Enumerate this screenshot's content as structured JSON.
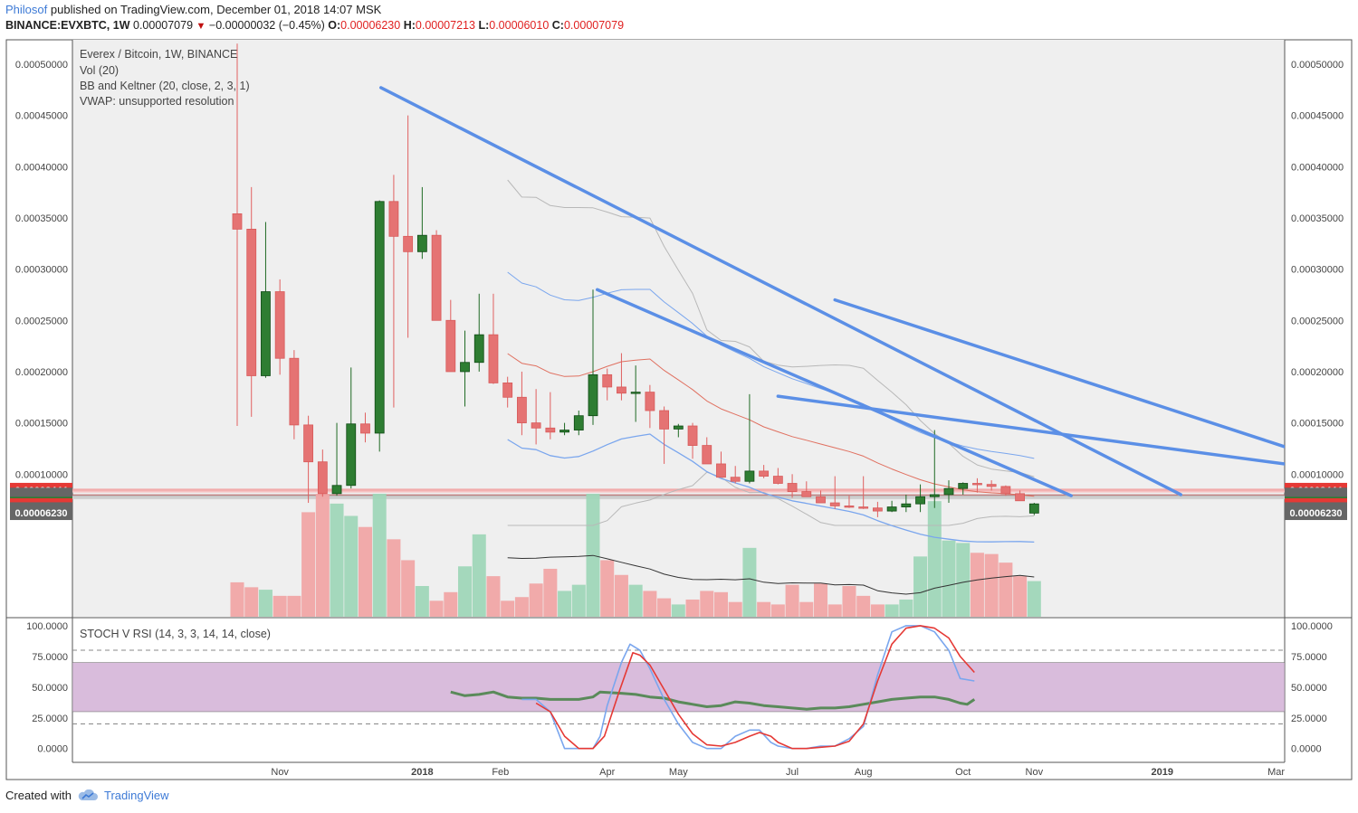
{
  "header": {
    "author": "Philosof",
    "published_text": "published on TradingView.com, December 01, 2018 14:07 MSK",
    "symbol": "BINANCE:EVXBTC, 1W",
    "last": "0.00007079",
    "change": "−0.00000032 (−0.45%)",
    "o_label": "O:",
    "o": "0.00006230",
    "h_label": "H:",
    "h": "0.00007213",
    "l_label": "L:",
    "l": "0.00006010",
    "c_label": "C:",
    "c": "0.00007079"
  },
  "legend": {
    "title": "Everex / Bitcoin, 1W, BINANCE",
    "vol": "Vol (20)",
    "bb": "BB and Keltner (20, close, 2, 3, 1)",
    "vwap": "VWAP: unsupported resolution"
  },
  "stoch_label": "STOCH V RSI (14, 3, 3, 14, 14, close)",
  "footer": {
    "created_with": "Created with",
    "brand": "TradingView"
  },
  "colors": {
    "up": "#2e7d32",
    "down": "#e57373",
    "trendline": "#5b8fe6",
    "stoch_k": "#7aa6ee",
    "stoch_d": "#e53935",
    "rsi": "#5a8a5a",
    "band": "#d9bcdc"
  },
  "chart_data": {
    "type": "candlestick",
    "price_axis": {
      "ylim": [
        6e-05,
        0.00052
      ],
      "ticks": [
        "0.00010000",
        "0.00015000",
        "0.00020000",
        "0.00025000",
        "0.00030000",
        "0.00035000",
        "0.00040000",
        "0.00045000",
        "0.00050000"
      ],
      "tick_values": [
        0.0001,
        0.00015,
        0.0002,
        0.00025,
        0.0003,
        0.00035,
        0.0004,
        0.00045,
        0.0005
      ],
      "price_labels": [
        {
          "text": "0.00008444",
          "value": 8.444e-05,
          "color": "#e53935"
        },
        {
          "text": "0.00007974",
          "value": 7.974e-05,
          "color": "#666666"
        },
        {
          "text": "0.00007794",
          "value": 7.794e-05,
          "color": "#666666"
        },
        {
          "text": "0.00007468",
          "value": 7.468e-05,
          "color": "#666666"
        },
        {
          "text": "0.00007079",
          "value": 7.079e-05,
          "color": "#2e7d32"
        },
        {
          "text": "0.00006942",
          "value": 6.942e-05,
          "color": "#e53935"
        },
        {
          "text": "0.00006548",
          "value": 6.548e-05,
          "color": "#666666"
        },
        {
          "text": "0.00006230",
          "value": 6.23e-05,
          "color": "#666666"
        }
      ]
    },
    "x_axis": {
      "labels": [
        "Nov",
        "2018",
        "Feb",
        "Apr",
        "May",
        "Jul",
        "Aug",
        "Oct",
        "Nov",
        "2019",
        "Mar"
      ],
      "label_weeks": [
        3,
        13,
        18.5,
        26,
        31,
        39,
        44,
        51,
        56,
        65,
        73
      ]
    },
    "candles": [
      {
        "o": 0.000354,
        "h": 0.00052,
        "l": 0.000147,
        "c": 0.000339
      },
      {
        "o": 0.000339,
        "h": 0.00038,
        "l": 0.000156,
        "c": 0.000196
      },
      {
        "o": 0.000196,
        "h": 0.000346,
        "l": 0.000194,
        "c": 0.000278
      },
      {
        "o": 0.000278,
        "h": 0.00029,
        "l": 0.000197,
        "c": 0.000213
      },
      {
        "o": 0.000213,
        "h": 0.000221,
        "l": 0.000134,
        "c": 0.000148
      },
      {
        "o": 0.000148,
        "h": 0.000157,
        "l": 7.2e-05,
        "c": 0.000112
      },
      {
        "o": 0.000112,
        "h": 0.000124,
        "l": 7.8e-05,
        "c": 8.1e-05
      },
      {
        "o": 8.1e-05,
        "h": 0.00015,
        "l": 7.9e-05,
        "c": 8.9e-05
      },
      {
        "o": 8.9e-05,
        "h": 0.000204,
        "l": 8.6e-05,
        "c": 0.000149
      },
      {
        "o": 0.000149,
        "h": 0.00016,
        "l": 0.000131,
        "c": 0.00014
      },
      {
        "o": 0.00014,
        "h": 0.000367,
        "l": 0.000122,
        "c": 0.000366
      },
      {
        "o": 0.000366,
        "h": 0.000392,
        "l": 0.000165,
        "c": 0.000332
      },
      {
        "o": 0.000332,
        "h": 0.00045,
        "l": 0.000233,
        "c": 0.000317
      },
      {
        "o": 0.000317,
        "h": 0.00038,
        "l": 0.00031,
        "c": 0.000333
      },
      {
        "o": 0.000333,
        "h": 0.000338,
        "l": 0.000252,
        "c": 0.00025
      },
      {
        "o": 0.00025,
        "h": 0.00027,
        "l": 0.0002,
        "c": 0.0002
      },
      {
        "o": 0.0002,
        "h": 0.00024,
        "l": 0.000166,
        "c": 0.000209
      },
      {
        "o": 0.000209,
        "h": 0.000276,
        "l": 0.0002,
        "c": 0.000236
      },
      {
        "o": 0.000236,
        "h": 0.000276,
        "l": 0.000188,
        "c": 0.000189
      },
      {
        "o": 0.000189,
        "h": 0.000195,
        "l": 0.000165,
        "c": 0.000175
      },
      {
        "o": 0.000175,
        "h": 0.0002,
        "l": 0.000138,
        "c": 0.00015
      },
      {
        "o": 0.00015,
        "h": 0.000183,
        "l": 0.000129,
        "c": 0.000145
      },
      {
        "o": 0.000145,
        "h": 0.00018,
        "l": 0.000134,
        "c": 0.000141
      },
      {
        "o": 0.000141,
        "h": 0.00015,
        "l": 0.000138,
        "c": 0.000143
      },
      {
        "o": 0.000143,
        "h": 0.000162,
        "l": 0.000138,
        "c": 0.000157
      },
      {
        "o": 0.000157,
        "h": 0.00028,
        "l": 0.000148,
        "c": 0.000197
      },
      {
        "o": 0.000197,
        "h": 0.000203,
        "l": 0.000172,
        "c": 0.000185
      },
      {
        "o": 0.000185,
        "h": 0.000218,
        "l": 0.000172,
        "c": 0.000179
      },
      {
        "o": 0.000179,
        "h": 0.000206,
        "l": 0.000151,
        "c": 0.00018
      },
      {
        "o": 0.00018,
        "h": 0.000187,
        "l": 0.000145,
        "c": 0.000162
      },
      {
        "o": 0.000162,
        "h": 0.000166,
        "l": 0.00011,
        "c": 0.000144
      },
      {
        "o": 0.000144,
        "h": 0.000149,
        "l": 0.000136,
        "c": 0.000147
      },
      {
        "o": 0.000147,
        "h": 0.00015,
        "l": 0.000115,
        "c": 0.000128
      },
      {
        "o": 0.000128,
        "h": 0.000136,
        "l": 0.000112,
        "c": 0.00011
      },
      {
        "o": 0.00011,
        "h": 0.000122,
        "l": 9.8e-05,
        "c": 9.7e-05
      },
      {
        "o": 9.7e-05,
        "h": 0.000108,
        "l": 9.1e-05,
        "c": 9.3e-05
      },
      {
        "o": 9.3e-05,
        "h": 0.000178,
        "l": 9.1e-05,
        "c": 0.000103
      },
      {
        "o": 0.000103,
        "h": 0.000109,
        "l": 9.6e-05,
        "c": 9.8e-05
      },
      {
        "o": 9.8e-05,
        "h": 0.000106,
        "l": 9e-05,
        "c": 9.1e-05
      },
      {
        "o": 9.1e-05,
        "h": 0.0001,
        "l": 7.7e-05,
        "c": 8.3e-05
      },
      {
        "o": 8.3e-05,
        "h": 9.3e-05,
        "l": 8.1e-05,
        "c": 7.8e-05
      },
      {
        "o": 7.8e-05,
        "h": 8.4e-05,
        "l": 7.3e-05,
        "c": 7.2e-05
      },
      {
        "o": 7.2e-05,
        "h": 9.8e-05,
        "l": 6.6e-05,
        "c": 6.9e-05
      },
      {
        "o": 6.9e-05,
        "h": 7.9e-05,
        "l": 6.7e-05,
        "c": 6.8e-05
      },
      {
        "o": 6.8e-05,
        "h": 9.8e-05,
        "l": 6.6e-05,
        "c": 6.7e-05
      },
      {
        "o": 6.7e-05,
        "h": 7.3e-05,
        "l": 5.8e-05,
        "c": 6.4e-05
      },
      {
        "o": 6.4e-05,
        "h": 7.4e-05,
        "l": 6.3e-05,
        "c": 6.8e-05
      },
      {
        "o": 6.8e-05,
        "h": 8e-05,
        "l": 6.3e-05,
        "c": 7.1e-05
      },
      {
        "o": 7.1e-05,
        "h": 9e-05,
        "l": 6.3e-05,
        "c": 7.8e-05
      },
      {
        "o": 7.8e-05,
        "h": 0.000143,
        "l": 6.7e-05,
        "c": 8e-05
      },
      {
        "o": 8e-05,
        "h": 9.4e-05,
        "l": 7.2e-05,
        "c": 8.6e-05
      },
      {
        "o": 8.6e-05,
        "h": 9.2e-05,
        "l": 8e-05,
        "c": 9.1e-05
      },
      {
        "o": 9.1e-05,
        "h": 9.6e-05,
        "l": 8.2e-05,
        "c": 9e-05
      },
      {
        "o": 9e-05,
        "h": 9.4e-05,
        "l": 8.4e-05,
        "c": 8.8e-05
      },
      {
        "o": 8.8e-05,
        "h": 8.9e-05,
        "l": 7.9e-05,
        "c": 8.1e-05
      },
      {
        "o": 8.1e-05,
        "h": 8.4e-05,
        "l": 7.4e-05,
        "c": 7.4e-05
      },
      {
        "o": 6.2e-05,
        "h": 7.2e-05,
        "l": 6e-05,
        "c": 7.1e-05
      }
    ],
    "volume_rel": [
      0.28,
      0.24,
      0.22,
      0.17,
      0.17,
      0.85,
      1.0,
      0.92,
      0.82,
      0.73,
      1.0,
      0.63,
      0.46,
      0.25,
      0.13,
      0.2,
      0.41,
      0.67,
      0.33,
      0.13,
      0.16,
      0.27,
      0.39,
      0.21,
      0.26,
      1.0,
      0.46,
      0.34,
      0.26,
      0.21,
      0.15,
      0.1,
      0.14,
      0.21,
      0.2,
      0.12,
      0.56,
      0.12,
      0.1,
      0.26,
      0.12,
      0.27,
      0.1,
      0.25,
      0.17,
      0.1,
      0.1,
      0.14,
      0.49,
      0.94,
      0.62,
      0.6,
      0.52,
      0.51,
      0.44,
      0.33,
      0.29
    ],
    "trendlines": [
      {
        "w1": 10.1,
        "p1": 0.000477,
        "w2": 66.3,
        "p2": 8e-05
      },
      {
        "w1": 25.3,
        "p1": 0.00028,
        "w2": 58.6,
        "p2": 7.9e-05
      },
      {
        "w1": 38.0,
        "p1": 0.000176,
        "w2": 86.5,
        "p2": 8.6e-05
      },
      {
        "w1": 42.0,
        "p1": 0.00027,
        "w2": 87.0,
        "p2": 6.6e-05
      }
    ],
    "stoch_rsi": {
      "ylim": [
        -20,
        100
      ],
      "ticks": [
        "0.0000",
        "25.0000",
        "50.0000",
        "75.0000",
        "100.0000"
      ],
      "tick_values": [
        0,
        25,
        50,
        75,
        100
      ],
      "band": [
        30,
        70
      ],
      "overbought": 80,
      "oversold": 20,
      "k": [
        [
          20.0,
          40
        ],
        [
          21.0,
          40
        ],
        [
          22.0,
          30
        ],
        [
          23.0,
          0
        ],
        [
          24.0,
          0
        ],
        [
          25.0,
          0
        ],
        [
          25.5,
          10
        ],
        [
          26.0,
          35
        ],
        [
          27.0,
          70
        ],
        [
          27.6,
          85
        ],
        [
          28.3,
          80
        ],
        [
          29.0,
          65
        ],
        [
          30.0,
          40
        ],
        [
          31.0,
          20
        ],
        [
          32.0,
          5
        ],
        [
          33.0,
          0
        ],
        [
          34.0,
          0
        ],
        [
          35.0,
          10
        ],
        [
          36.0,
          15
        ],
        [
          36.7,
          15
        ],
        [
          37.5,
          5
        ],
        [
          38.0,
          2
        ],
        [
          39.0,
          0
        ],
        [
          40.0,
          0
        ],
        [
          41.0,
          2
        ],
        [
          42.0,
          2
        ],
        [
          43.0,
          8
        ],
        [
          44.0,
          18
        ],
        [
          45.0,
          60
        ],
        [
          46.0,
          95
        ],
        [
          47.0,
          100
        ],
        [
          48.0,
          100
        ],
        [
          49.0,
          95
        ],
        [
          50.0,
          80
        ],
        [
          50.8,
          57
        ],
        [
          51.8,
          55
        ]
      ],
      "d": [
        [
          21.0,
          37
        ],
        [
          22.0,
          30
        ],
        [
          23.0,
          10
        ],
        [
          24.0,
          0
        ],
        [
          25.0,
          0
        ],
        [
          25.8,
          10
        ],
        [
          26.8,
          45
        ],
        [
          27.8,
          78
        ],
        [
          28.3,
          76
        ],
        [
          29.0,
          68
        ],
        [
          30.0,
          48
        ],
        [
          31.0,
          28
        ],
        [
          32.0,
          12
        ],
        [
          33.0,
          3
        ],
        [
          34.0,
          2
        ],
        [
          35.0,
          5
        ],
        [
          36.0,
          10
        ],
        [
          36.7,
          13
        ],
        [
          37.5,
          10
        ],
        [
          38.0,
          5
        ],
        [
          39.0,
          0
        ],
        [
          40.0,
          0
        ],
        [
          41.0,
          1
        ],
        [
          42.0,
          2
        ],
        [
          43.0,
          6
        ],
        [
          44.0,
          20
        ],
        [
          45.0,
          55
        ],
        [
          46.0,
          85
        ],
        [
          47.0,
          98
        ],
        [
          48.0,
          100
        ],
        [
          49.0,
          98
        ],
        [
          50.0,
          90
        ],
        [
          50.8,
          75
        ],
        [
          51.8,
          62
        ]
      ],
      "rsi": [
        [
          15.0,
          46
        ],
        [
          16.0,
          43
        ],
        [
          17.0,
          44
        ],
        [
          18.0,
          46
        ],
        [
          19.0,
          42
        ],
        [
          20.0,
          41
        ],
        [
          21.0,
          41
        ],
        [
          22.0,
          40
        ],
        [
          23.0,
          40
        ],
        [
          24.0,
          40
        ],
        [
          25.0,
          42
        ],
        [
          25.5,
          46
        ],
        [
          27.0,
          45
        ],
        [
          28.0,
          44
        ],
        [
          29.0,
          42
        ],
        [
          30.0,
          41
        ],
        [
          31.0,
          38
        ],
        [
          32.0,
          36
        ],
        [
          33.0,
          34
        ],
        [
          34.0,
          35
        ],
        [
          35.0,
          38
        ],
        [
          36.0,
          37
        ],
        [
          37.0,
          35
        ],
        [
          38.0,
          34
        ],
        [
          39.0,
          33
        ],
        [
          40.0,
          32
        ],
        [
          41.0,
          33
        ],
        [
          42.0,
          33
        ],
        [
          43.0,
          34
        ],
        [
          44.0,
          36
        ],
        [
          45.0,
          38
        ],
        [
          46.0,
          40
        ],
        [
          47.0,
          41
        ],
        [
          48.0,
          42
        ],
        [
          49.0,
          42
        ],
        [
          50.0,
          40
        ],
        [
          50.8,
          37
        ],
        [
          51.3,
          36
        ],
        [
          51.8,
          40
        ]
      ]
    }
  }
}
